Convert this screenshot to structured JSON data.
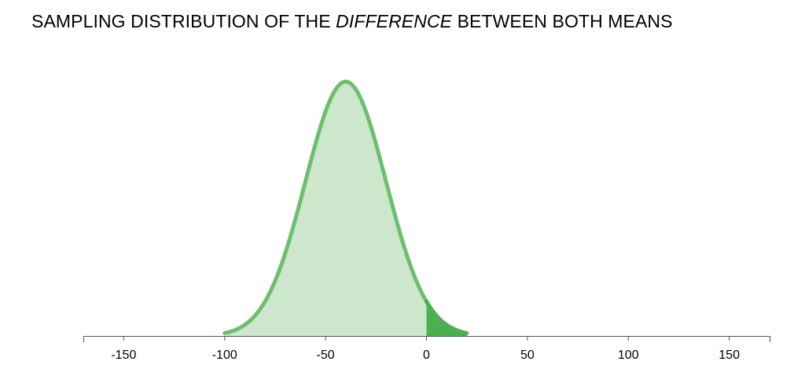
{
  "title": {
    "part1": "SAMPLING DISTRIBUTION OF THE ",
    "emphasis": "DIFFERENCE",
    "part2": " BETWEEN BOTH MEANS"
  },
  "colors": {
    "curve": "#6dbf6d",
    "fill": "#cde7cd",
    "tail": "#4caf50",
    "axis": "#555555"
  },
  "chart_data": {
    "type": "area",
    "distribution": "normal",
    "mean": -40,
    "sd": 20,
    "x_range_drawn": [
      -100,
      20
    ],
    "shaded_tail_from": 0,
    "xlim": [
      -170,
      170
    ],
    "xticks": [
      -150,
      -100,
      -50,
      0,
      50,
      100,
      150
    ],
    "xtick_labels": [
      "-150",
      "-100",
      "-50",
      "0",
      "50",
      "100",
      "150"
    ],
    "xlabel": "",
    "ylabel": "",
    "grid": false
  }
}
